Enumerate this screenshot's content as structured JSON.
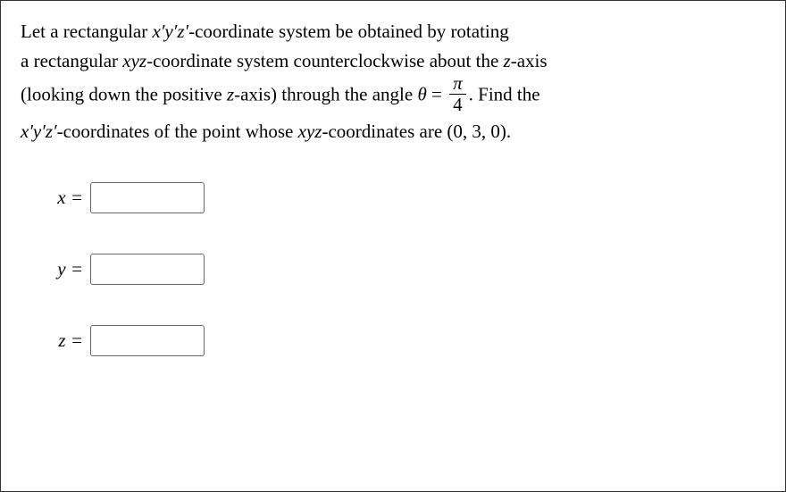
{
  "problem": {
    "line1_prefix": "Let a rectangular ",
    "coord1": "x′y′z′",
    "line1_mid": "-coordinate system be obtained by rotating",
    "line2_prefix": "a rectangular ",
    "coord2": "xyz",
    "line2_suffix": "-coordinate system counterclockwise about the ",
    "zaxis": "z",
    "line2_end": "-axis",
    "line3_prefix": "(looking down the positive ",
    "line3_mid": "-axis) through the angle ",
    "theta": "θ",
    "equals": " = ",
    "frac_num": "π",
    "frac_den": "4",
    "line3_suffix": ". Find the",
    "line4_prefix": "",
    "coord3": "x′y′z′",
    "line4_mid": "-coordinates of the point whose ",
    "coord4": "xyz",
    "line4_suffix": "-coordinates are ",
    "point": "(0, 3, 0)",
    "period": "."
  },
  "answers": {
    "x_label": "x =",
    "y_label": "y =",
    "z_label": "z =",
    "x_value": "",
    "y_value": "",
    "z_value": ""
  },
  "style": {
    "background": "#ffffff",
    "text_color": "#000000",
    "border_color": "#333333",
    "input_border": "#666666",
    "font_size": 21,
    "input_width": 128,
    "input_height": 35
  }
}
